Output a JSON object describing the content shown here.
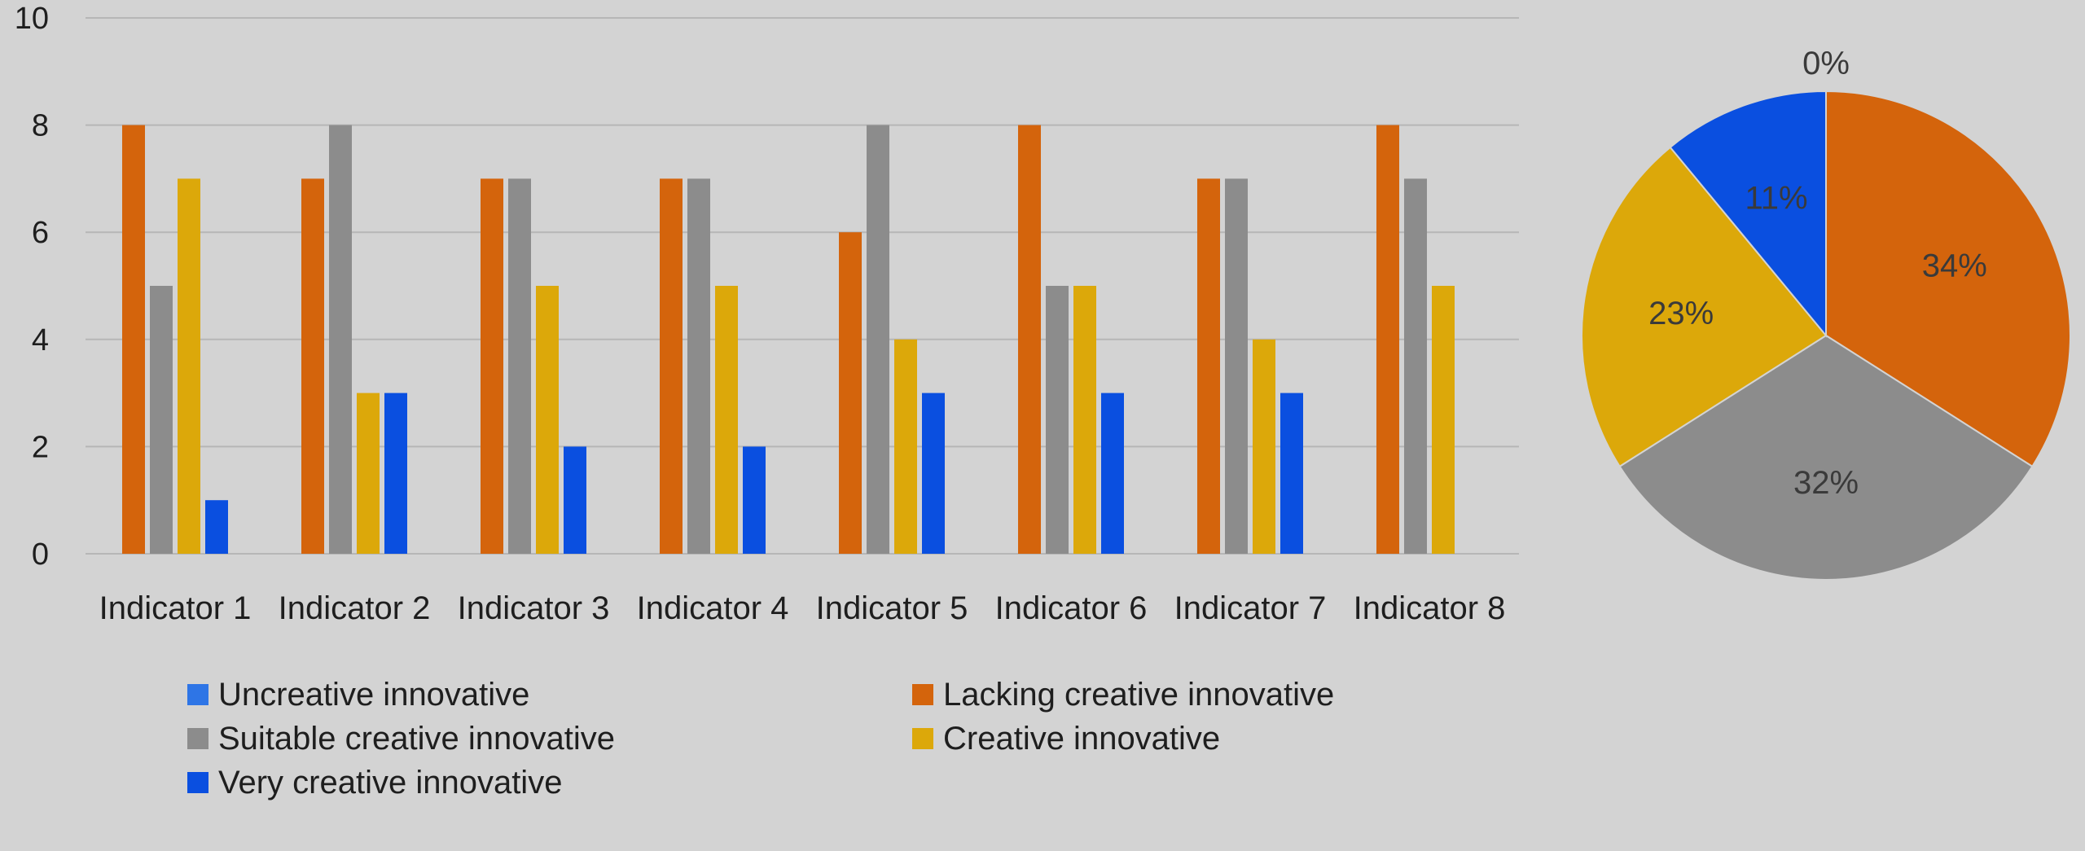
{
  "chart_data": [
    {
      "type": "bar",
      "categories": [
        "Indicator 1",
        "Indicator 2",
        "Indicator 3",
        "Indicator 4",
        "Indicator 5",
        "Indicator 6",
        "Indicator 7",
        "Indicator 8"
      ],
      "series": [
        {
          "name": "Uncreative innovative",
          "color": "#2e75e6",
          "values": [
            0,
            0,
            0,
            0,
            0,
            0,
            0,
            0
          ]
        },
        {
          "name": "Lacking creative innovative",
          "color": "#d4640c",
          "values": [
            8,
            7,
            7,
            7,
            6,
            8,
            7,
            8
          ]
        },
        {
          "name": "Suitable creative innovative",
          "color": "#8c8c8c",
          "values": [
            5,
            8,
            7,
            7,
            8,
            5,
            7,
            7
          ]
        },
        {
          "name": "Creative innovative",
          "color": "#dca80a",
          "values": [
            7,
            3,
            5,
            5,
            4,
            5,
            4,
            5
          ]
        },
        {
          "name": "Very creative innovative",
          "color": "#0a4fe0",
          "values": [
            1,
            3,
            2,
            2,
            3,
            3,
            3,
            0
          ]
        }
      ],
      "ylim": [
        0,
        10
      ],
      "yticks": [
        "0",
        "2",
        "4",
        "6",
        "8",
        "10"
      ],
      "grid": true,
      "legend": "bottom"
    },
    {
      "type": "pie",
      "categories": [
        "Uncreative innovative",
        "Lacking creative innovative",
        "Suitable creative innovative",
        "Creative innovative",
        "Very creative innovative"
      ],
      "values": [
        0,
        34,
        32,
        23,
        11
      ],
      "labels": [
        "0%",
        "34%",
        "32%",
        "23%",
        "11%"
      ],
      "colors": [
        "#2e75e6",
        "#d4640c",
        "#8c8c8c",
        "#dca80a",
        "#0a4fe0"
      ]
    }
  ]
}
